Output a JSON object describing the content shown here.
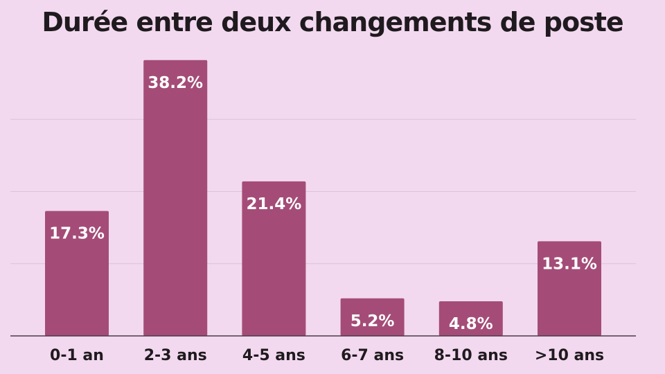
{
  "chart_data": {
    "type": "bar",
    "title": "Durée entre deux changements de poste",
    "xlabel": "",
    "ylabel": "",
    "categories": [
      "0-1 an",
      "2-3 ans",
      "4-5 ans",
      "6-7 ans",
      "8-10 ans",
      ">10 ans"
    ],
    "values": [
      17.3,
      38.2,
      21.4,
      5.2,
      4.8,
      13.1
    ],
    "data_labels": [
      "17.3%",
      "38.2%",
      "21.4%",
      "5.2%",
      "4.8%",
      "13.1%"
    ],
    "ylim": [
      0,
      40
    ],
    "grid": true,
    "legend": "none",
    "colors": {
      "background": "#f2d9ef",
      "bar": "#a44c77",
      "text": "#1f1a1e",
      "data_label": "#ffffff"
    }
  }
}
